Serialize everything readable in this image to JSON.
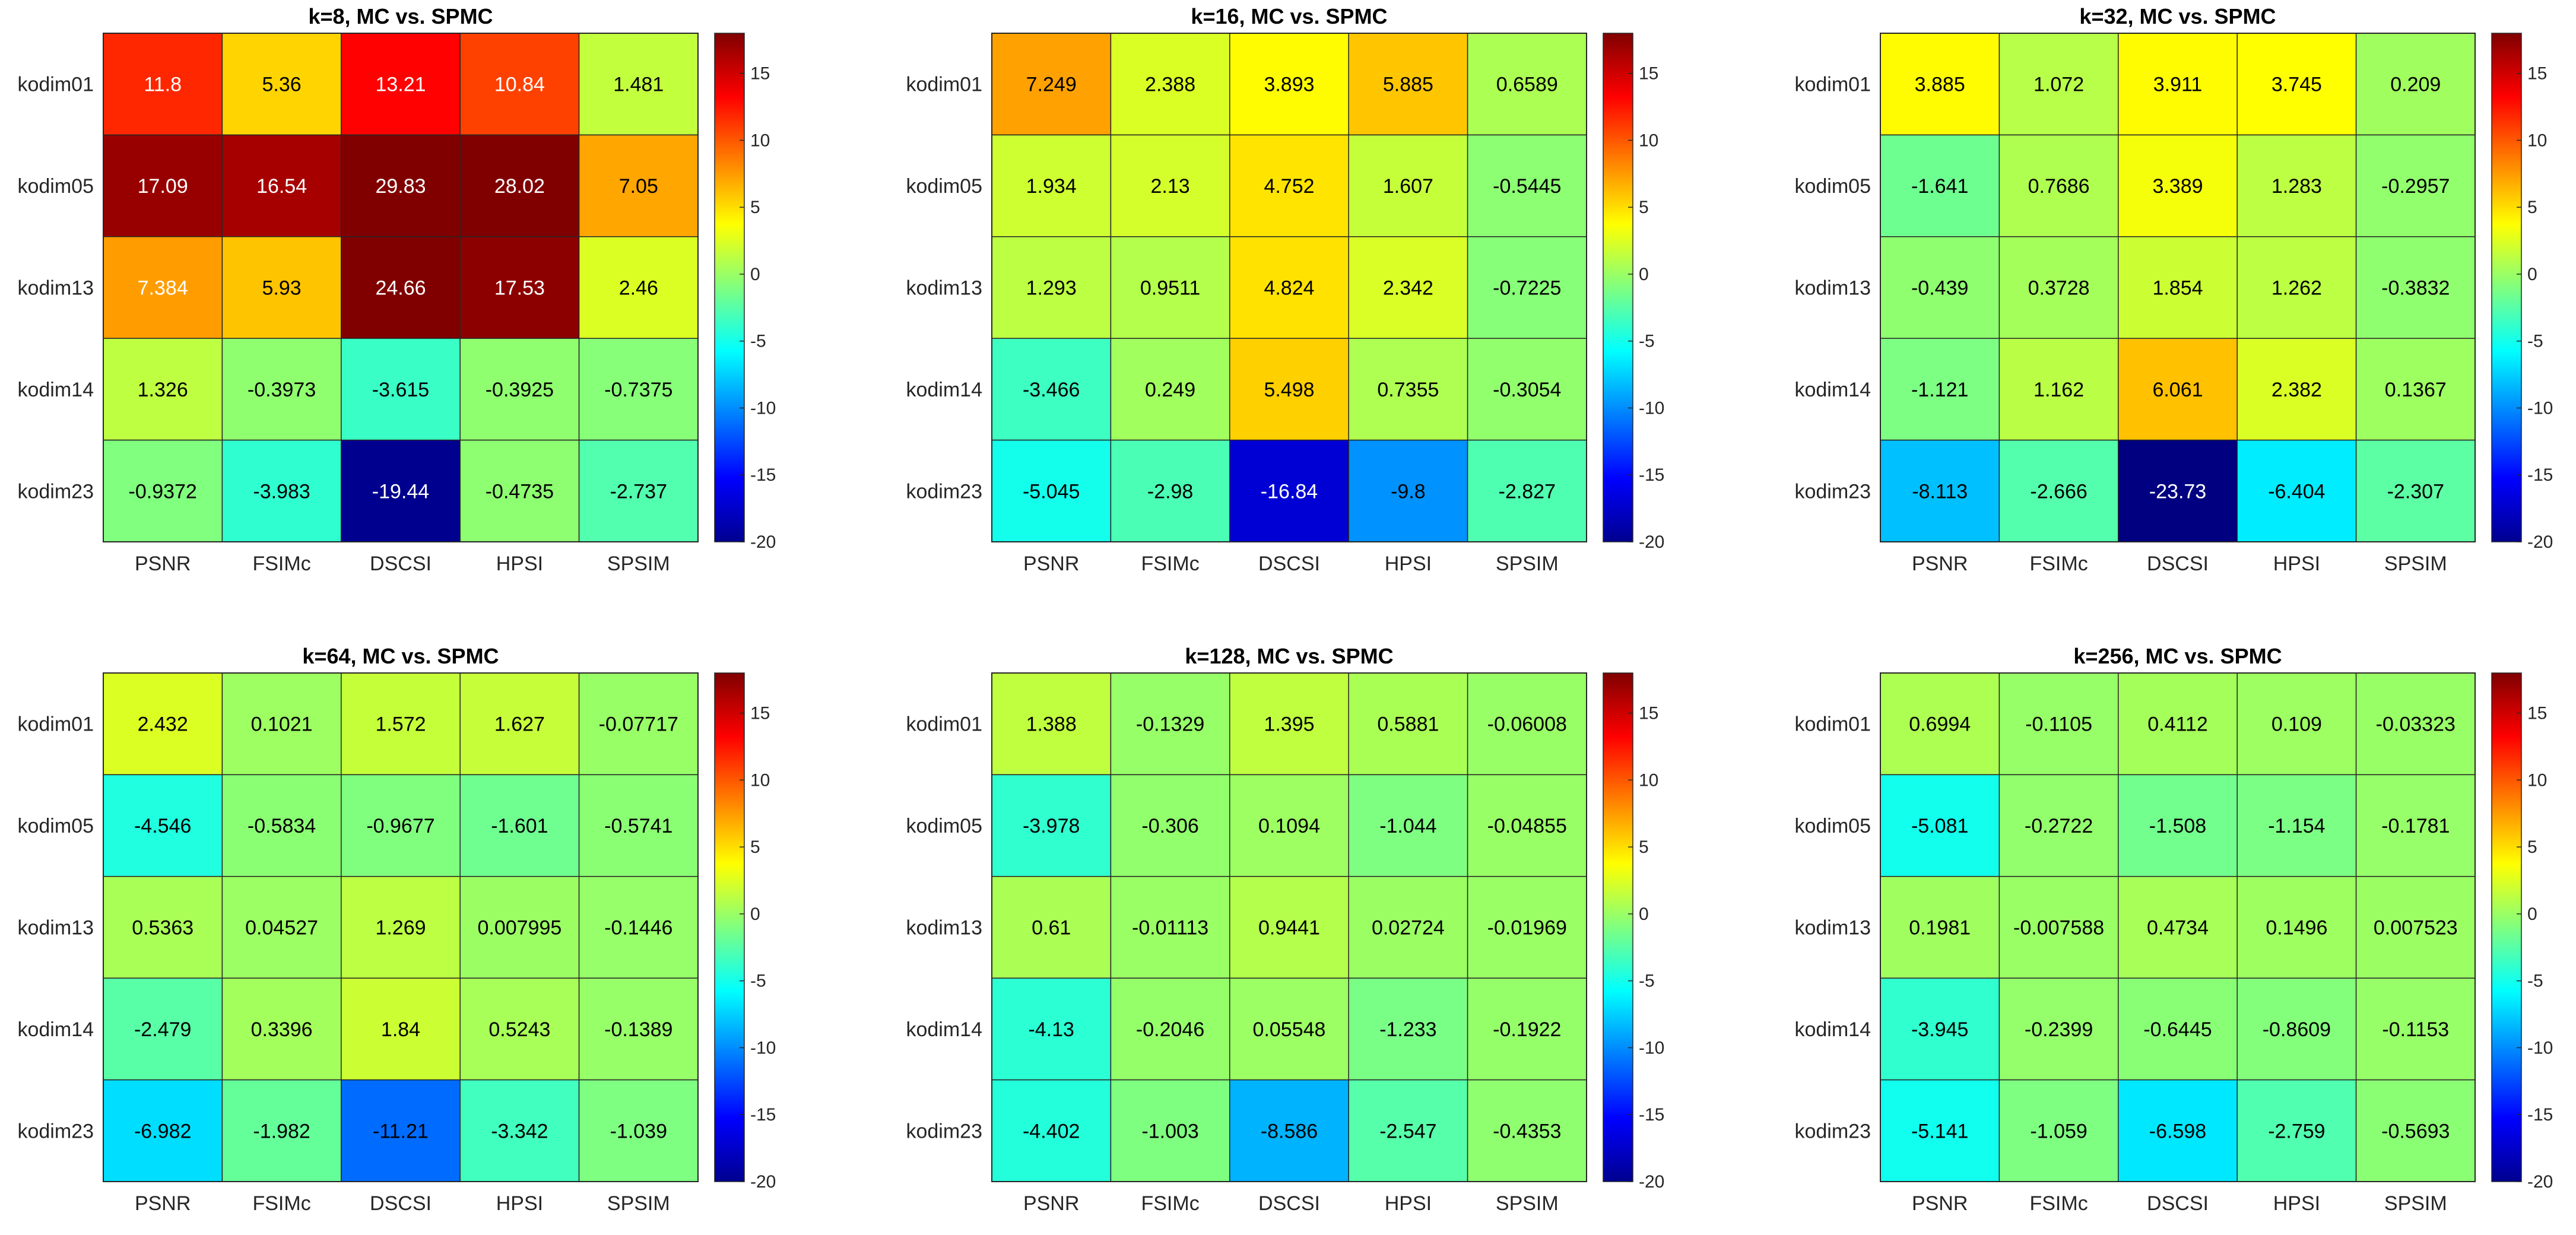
{
  "figure": {
    "background": "#ffffff",
    "colormap": "jet"
  },
  "chart_data": [
    {
      "type": "heatmap",
      "title": "k=8, MC vs. SPMC",
      "xlabels": [
        "PSNR",
        "FSIMc",
        "DSCSI",
        "HPSI",
        "SPSIM"
      ],
      "ylabels": [
        "kodim01",
        "kodim05",
        "kodim13",
        "kodim14",
        "kodim23"
      ],
      "values": [
        [
          "11.8",
          "5.36",
          "13.21",
          "10.84",
          "1.481"
        ],
        [
          "17.09",
          "16.54",
          "29.83",
          "28.02",
          "7.05"
        ],
        [
          "7.384",
          "5.93",
          "24.66",
          "17.53",
          "2.46"
        ],
        [
          "1.326",
          "-0.3973",
          "-3.615",
          "-0.3925",
          "-0.7375"
        ],
        [
          "-0.9372",
          "-3.983",
          "-19.44",
          "-0.4735",
          "-2.737"
        ]
      ],
      "clim": [
        -20,
        18
      ],
      "colorbar_ticks": [
        "15",
        "10",
        "5",
        "0",
        "-5",
        "-10",
        "-15",
        "-20"
      ]
    },
    {
      "type": "heatmap",
      "title": "k=16, MC vs. SPMC",
      "xlabels": [
        "PSNR",
        "FSIMc",
        "DSCSI",
        "HPSI",
        "SPSIM"
      ],
      "ylabels": [
        "kodim01",
        "kodim05",
        "kodim13",
        "kodim14",
        "kodim23"
      ],
      "values": [
        [
          "7.249",
          "2.388",
          "3.893",
          "5.885",
          "0.6589"
        ],
        [
          "1.934",
          "2.13",
          "4.752",
          "1.607",
          "-0.5445"
        ],
        [
          "1.293",
          "0.9511",
          "4.824",
          "2.342",
          "-0.7225"
        ],
        [
          "-3.466",
          "0.249",
          "5.498",
          "0.7355",
          "-0.3054"
        ],
        [
          "-5.045",
          "-2.98",
          "-16.84",
          "-9.8",
          "-2.827"
        ]
      ],
      "clim": [
        -20,
        18
      ],
      "colorbar_ticks": [
        "15",
        "10",
        "5",
        "0",
        "-5",
        "-10",
        "-15",
        "-20"
      ]
    },
    {
      "type": "heatmap",
      "title": "k=32, MC vs. SPMC",
      "xlabels": [
        "PSNR",
        "FSIMc",
        "DSCSI",
        "HPSI",
        "SPSIM"
      ],
      "ylabels": [
        "kodim01",
        "kodim05",
        "kodim13",
        "kodim14",
        "kodim23"
      ],
      "values": [
        [
          "3.885",
          "1.072",
          "3.911",
          "3.745",
          "0.209"
        ],
        [
          "-1.641",
          "0.7686",
          "3.389",
          "1.283",
          "-0.2957"
        ],
        [
          "-0.439",
          "0.3728",
          "1.854",
          "1.262",
          "-0.3832"
        ],
        [
          "-1.121",
          "1.162",
          "6.061",
          "2.382",
          "0.1367"
        ],
        [
          "-8.113",
          "-2.666",
          "-23.73",
          "-6.404",
          "-2.307"
        ]
      ],
      "clim": [
        -20,
        18
      ],
      "colorbar_ticks": [
        "15",
        "10",
        "5",
        "0",
        "-5",
        "-10",
        "-15",
        "-20"
      ]
    },
    {
      "type": "heatmap",
      "title": "k=64, MC vs. SPMC",
      "xlabels": [
        "PSNR",
        "FSIMc",
        "DSCSI",
        "HPSI",
        "SPSIM"
      ],
      "ylabels": [
        "kodim01",
        "kodim05",
        "kodim13",
        "kodim14",
        "kodim23"
      ],
      "values": [
        [
          "2.432",
          "0.1021",
          "1.572",
          "1.627",
          "-0.07717"
        ],
        [
          "-4.546",
          "-0.5834",
          "-0.9677",
          "-1.601",
          "-0.5741"
        ],
        [
          "0.5363",
          "0.04527",
          "1.269",
          "0.007995",
          "-0.1446"
        ],
        [
          "-2.479",
          "0.3396",
          "1.84",
          "0.5243",
          "-0.1389"
        ],
        [
          "-6.982",
          "-1.982",
          "-11.21",
          "-3.342",
          "-1.039"
        ]
      ],
      "clim": [
        -20,
        18
      ],
      "colorbar_ticks": [
        "15",
        "10",
        "5",
        "0",
        "-5",
        "-10",
        "-15",
        "-20"
      ]
    },
    {
      "type": "heatmap",
      "title": "k=128, MC vs. SPMC",
      "xlabels": [
        "PSNR",
        "FSIMc",
        "DSCSI",
        "HPSI",
        "SPSIM"
      ],
      "ylabels": [
        "kodim01",
        "kodim05",
        "kodim13",
        "kodim14",
        "kodim23"
      ],
      "values": [
        [
          "1.388",
          "-0.1329",
          "1.395",
          "0.5881",
          "-0.06008"
        ],
        [
          "-3.978",
          "-0.306",
          "0.1094",
          "-1.044",
          "-0.04855"
        ],
        [
          "0.61",
          "-0.01113",
          "0.9441",
          "0.02724",
          "-0.01969"
        ],
        [
          "-4.13",
          "-0.2046",
          "0.05548",
          "-1.233",
          "-0.1922"
        ],
        [
          "-4.402",
          "-1.003",
          "-8.586",
          "-2.547",
          "-0.4353"
        ]
      ],
      "clim": [
        -20,
        18
      ],
      "colorbar_ticks": [
        "15",
        "10",
        "5",
        "0",
        "-5",
        "-10",
        "-15",
        "-20"
      ]
    },
    {
      "type": "heatmap",
      "title": "k=256, MC vs. SPMC",
      "xlabels": [
        "PSNR",
        "FSIMc",
        "DSCSI",
        "HPSI",
        "SPSIM"
      ],
      "ylabels": [
        "kodim01",
        "kodim05",
        "kodim13",
        "kodim14",
        "kodim23"
      ],
      "values": [
        [
          "0.6994",
          "-0.1105",
          "0.4112",
          "0.109",
          "-0.03323"
        ],
        [
          "-5.081",
          "-0.2722",
          "-1.508",
          "-1.154",
          "-0.1781"
        ],
        [
          "0.1981",
          "-0.007588",
          "0.4734",
          "0.1496",
          "0.007523"
        ],
        [
          "-3.945",
          "-0.2399",
          "-0.6445",
          "-0.8609",
          "-0.1153"
        ],
        [
          "-5.141",
          "-1.059",
          "-6.598",
          "-2.759",
          "-0.5693"
        ]
      ],
      "clim": [
        -20,
        18
      ],
      "colorbar_ticks": [
        "15",
        "10",
        "5",
        "0",
        "-5",
        "-10",
        "-15",
        "-20"
      ]
    }
  ]
}
